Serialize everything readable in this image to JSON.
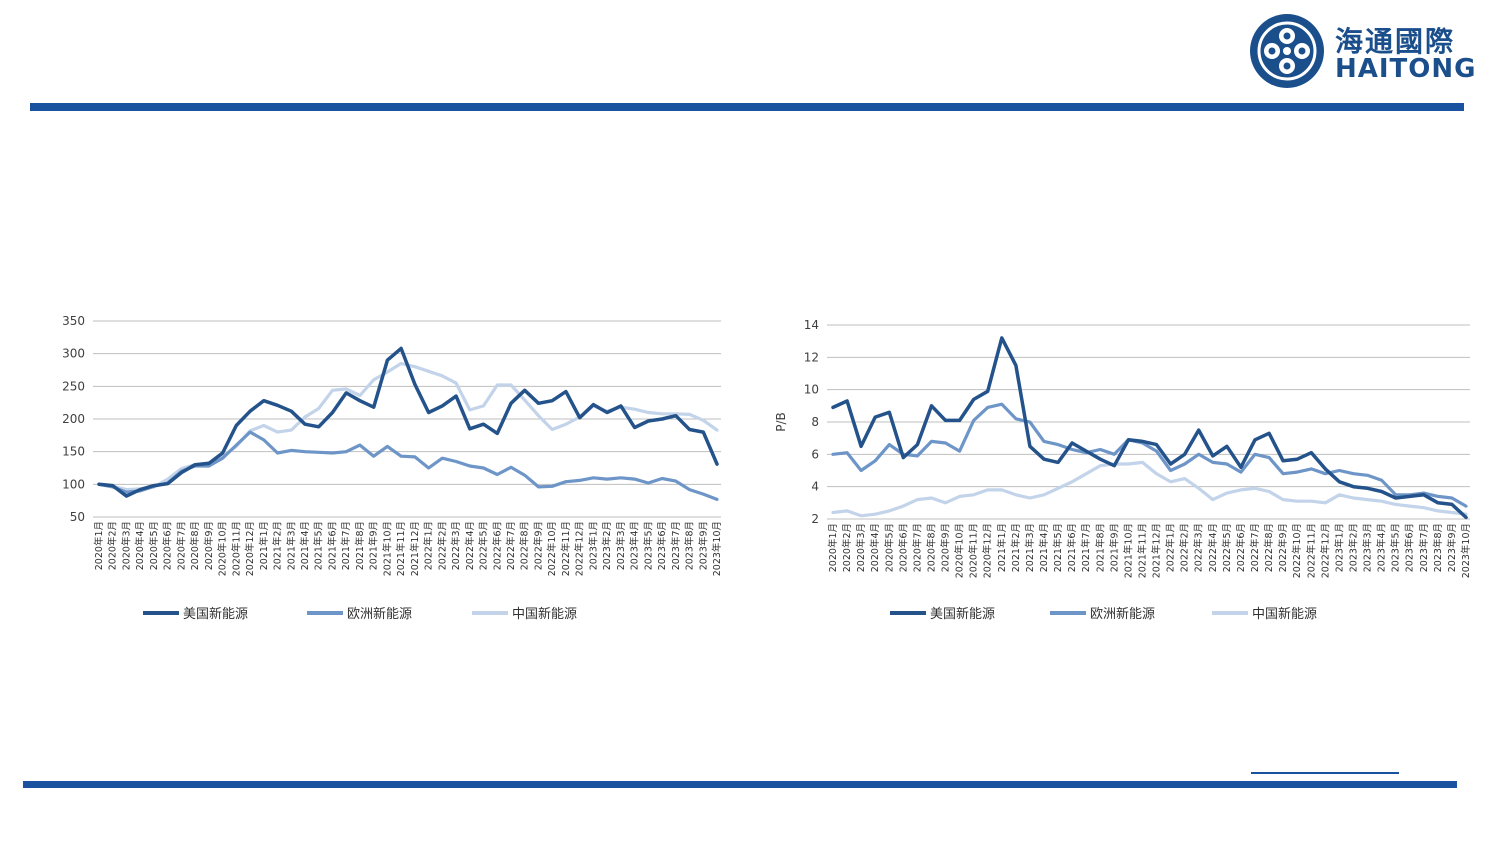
{
  "logo": {
    "cn": "海通國際",
    "en": "HAITONG"
  },
  "colors": {
    "us": "#24528a",
    "eu": "#6e95c8",
    "cn": "#c2d3ea",
    "grid": "#bfbfbf",
    "brand": "#1b52a0"
  },
  "chart_data": [
    {
      "type": "line",
      "title": "",
      "xlabel": "",
      "ylabel": "",
      "ylim": [
        50,
        350
      ],
      "yticks": [
        50,
        100,
        150,
        200,
        250,
        300,
        350
      ],
      "grid": true,
      "legend": "bottom",
      "categories": [
        "2020年1月",
        "2020年2月",
        "2020年3月",
        "2020年4月",
        "2020年5月",
        "2020年6月",
        "2020年7月",
        "2020年8月",
        "2020年9月",
        "2020年10月",
        "2020年11月",
        "2020年12月",
        "2021年1月",
        "2021年2月",
        "2021年3月",
        "2021年4月",
        "2021年5月",
        "2021年6月",
        "2021年7月",
        "2021年8月",
        "2021年9月",
        "2021年10月",
        "2021年11月",
        "2021年12月",
        "2022年1月",
        "2022年2月",
        "2022年3月",
        "2022年4月",
        "2022年5月",
        "2022年6月",
        "2022年7月",
        "2022年8月",
        "2022年9月",
        "2022年10月",
        "2022年11月",
        "2022年12月",
        "2023年1月",
        "2023年2月",
        "2023年3月",
        "2023年4月",
        "2023年5月",
        "2023年6月",
        "2023年7月",
        "2023年8月",
        "2023年9月",
        "2023年10月"
      ],
      "series": [
        {
          "name": "美国新能源",
          "values": [
            100,
            98,
            82,
            92,
            98,
            101,
            118,
            130,
            132,
            148,
            190,
            212,
            228,
            221,
            212,
            192,
            188,
            210,
            240,
            228,
            218,
            290,
            308,
            253,
            210,
            220,
            235,
            185,
            192,
            178,
            224,
            244,
            224,
            228,
            242,
            202,
            222,
            210,
            220,
            187,
            197,
            200,
            205,
            184,
            180,
            131
          ]
        },
        {
          "name": "欧洲新能源",
          "values": [
            100,
            96,
            88,
            90,
            97,
            102,
            120,
            128,
            128,
            140,
            160,
            180,
            168,
            148,
            152,
            150,
            149,
            148,
            150,
            160,
            143,
            158,
            143,
            142,
            125,
            140,
            135,
            128,
            125,
            115,
            126,
            114,
            96,
            97,
            104,
            106,
            110,
            108,
            110,
            108,
            102,
            109,
            105,
            92,
            85,
            77
          ]
        },
        {
          "name": "中国新能源",
          "values": [
            100,
            97,
            92,
            93,
            96,
            108,
            124,
            130,
            133,
            143,
            158,
            182,
            190,
            180,
            183,
            203,
            216,
            244,
            246,
            236,
            260,
            272,
            285,
            280,
            273,
            266,
            255,
            214,
            220,
            252,
            252,
            229,
            205,
            184,
            192,
            203,
            220,
            212,
            218,
            215,
            210,
            208,
            208,
            207,
            198,
            183
          ]
        }
      ]
    },
    {
      "type": "line",
      "title": "",
      "xlabel": "",
      "ylabel": "P/B",
      "ylim": [
        2,
        14
      ],
      "yticks": [
        2,
        4,
        6,
        8,
        10,
        12,
        14
      ],
      "grid": true,
      "legend": "bottom",
      "categories": [
        "2020年1月",
        "2020年2月",
        "2020年3月",
        "2020年4月",
        "2020年5月",
        "2020年6月",
        "2020年7月",
        "2020年8月",
        "2020年9月",
        "2020年10月",
        "2020年11月",
        "2020年12月",
        "2021年1月",
        "2021年2月",
        "2021年3月",
        "2021年4月",
        "2021年5月",
        "2021年6月",
        "2021年7月",
        "2021年8月",
        "2021年9月",
        "2021年10月",
        "2021年11月",
        "2021年12月",
        "2022年1月",
        "2022年2月",
        "2022年3月",
        "2022年4月",
        "2022年5月",
        "2022年6月",
        "2022年7月",
        "2022年8月",
        "2022年9月",
        "2022年10月",
        "2022年11月",
        "2022年12月",
        "2023年1月",
        "2023年2月",
        "2023年3月",
        "2023年4月",
        "2023年5月",
        "2023年6月",
        "2023年7月",
        "2023年8月",
        "2023年9月",
        "2023年10月"
      ],
      "series": [
        {
          "name": "美国新能源",
          "values": [
            8.9,
            9.3,
            6.5,
            8.3,
            8.6,
            5.8,
            6.6,
            9.0,
            8.1,
            8.1,
            9.4,
            9.9,
            13.2,
            11.5,
            6.5,
            5.7,
            5.5,
            6.7,
            6.2,
            5.7,
            5.3,
            6.9,
            6.8,
            6.6,
            5.4,
            6.0,
            7.5,
            5.9,
            6.5,
            5.2,
            6.9,
            7.3,
            5.6,
            5.7,
            6.1,
            5.1,
            4.3,
            4.0,
            3.9,
            3.7,
            3.3,
            3.4,
            3.5,
            3.0,
            2.9,
            2.1
          ]
        },
        {
          "name": "欧洲新能源",
          "values": [
            6.0,
            6.1,
            5.0,
            5.6,
            6.6,
            6.0,
            5.9,
            6.8,
            6.7,
            6.2,
            8.1,
            8.9,
            9.1,
            8.2,
            8.0,
            6.8,
            6.6,
            6.3,
            6.1,
            6.3,
            6.0,
            6.9,
            6.7,
            6.2,
            5.0,
            5.4,
            6.0,
            5.5,
            5.4,
            4.9,
            6.0,
            5.8,
            4.8,
            4.9,
            5.1,
            4.8,
            5.0,
            4.8,
            4.7,
            4.4,
            3.5,
            3.5,
            3.6,
            3.4,
            3.3,
            2.8
          ]
        },
        {
          "name": "中国新能源",
          "values": [
            2.4,
            2.5,
            2.2,
            2.3,
            2.5,
            2.8,
            3.2,
            3.3,
            3.0,
            3.4,
            3.5,
            3.8,
            3.8,
            3.5,
            3.3,
            3.5,
            3.9,
            4.3,
            4.8,
            5.3,
            5.4,
            5.4,
            5.5,
            4.8,
            4.3,
            4.5,
            3.9,
            3.2,
            3.6,
            3.8,
            3.9,
            3.7,
            3.2,
            3.1,
            3.1,
            3.0,
            3.5,
            3.3,
            3.2,
            3.1,
            2.9,
            2.8,
            2.7,
            2.5,
            2.4,
            2.3
          ]
        }
      ]
    }
  ]
}
